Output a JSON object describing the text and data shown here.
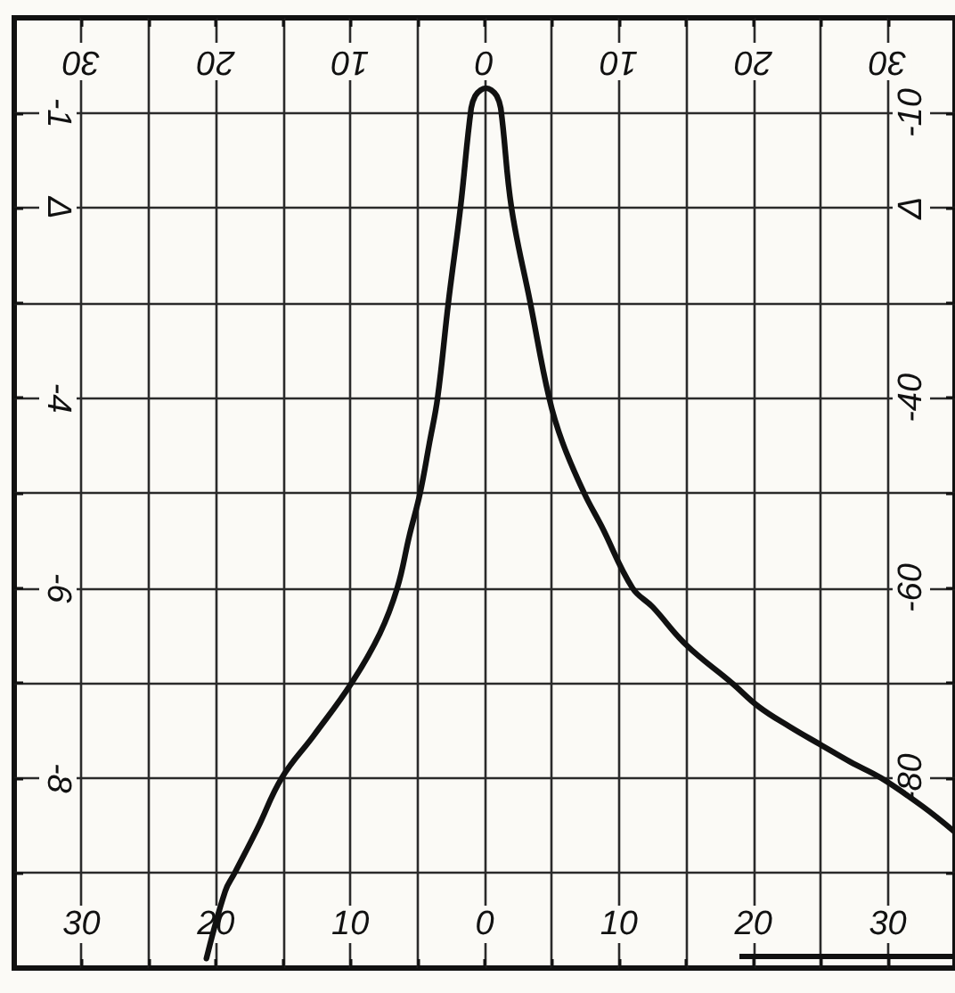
{
  "chart_data": {
    "type": "line",
    "x": [
      -20.7,
      -19.3,
      -18.6,
      -16.9,
      -15.1,
      -12.7,
      -9.9,
      -7.8,
      -6.5,
      -5.6,
      -4.8,
      -4.1,
      -3.5,
      -2.7,
      -1.8,
      -1.0,
      -0.7,
      -0.3,
      0.1,
      0.5,
      0.9,
      1.2,
      2.0,
      3.4,
      4.8,
      5.8,
      7.4,
      8.7,
      11.0,
      12.5,
      15,
      18.4,
      20.4,
      22.7,
      25,
      27.2,
      29.5,
      32.6,
      35
    ],
    "series": [
      {
        "color": "#111111",
        "axis": "y2",
        "values": [
          -99,
          -91.9,
          -90,
          -85.3,
          -80,
          -75.5,
          -70,
          -64.8,
          -60,
          -54.5,
          -50,
          -44.7,
          -40,
          -30,
          -20,
          -9.5,
          -8.2,
          -7.6,
          -7.4,
          -7.6,
          -8.2,
          -9.5,
          -20,
          -30,
          -40,
          -44.7,
          -50,
          -53.5,
          -60,
          -62.0,
          -66,
          -70,
          -72.5,
          -74.6,
          -76.5,
          -78.3,
          -80,
          -83,
          -85.7
        ]
      }
    ],
    "xlim": [
      -35,
      35
    ],
    "xticks": [
      {
        "value": -30,
        "label": "30"
      },
      {
        "value": -25,
        "label": null
      },
      {
        "value": -20,
        "label": "20"
      },
      {
        "value": -15,
        "label": null
      },
      {
        "value": -10,
        "label": "10"
      },
      {
        "value": -5,
        "label": null
      },
      0,
      {
        "value": 5,
        "label": null
      },
      10,
      {
        "value": 15,
        "label": null
      },
      20,
      {
        "value": 25,
        "label": null
      },
      30
    ],
    "x2lim": [
      -35,
      35
    ],
    "x2ticks": [
      {
        "value": -30,
        "label": "30"
      },
      {
        "value": -25,
        "label": null
      },
      {
        "value": -20,
        "label": "20"
      },
      {
        "value": -15,
        "label": null
      },
      {
        "value": -10,
        "label": "10"
      },
      {
        "value": -5,
        "label": null
      },
      0,
      {
        "value": 5,
        "label": null
      },
      10,
      {
        "value": 15,
        "label": null
      },
      20,
      {
        "value": 25,
        "label": null
      },
      30
    ],
    "ylim": [
      -10,
      0
    ],
    "yticks": [
      {
        "value": -9,
        "label": null
      },
      -8,
      {
        "value": -7,
        "label": null
      },
      -6,
      {
        "value": -5,
        "label": null
      },
      -4,
      {
        "value": -3,
        "label": null
      },
      {
        "value": -2,
        "label": "Δ"
      },
      -1
    ],
    "y2lim": [
      -100,
      0
    ],
    "y2ticks": [
      {
        "value": -90,
        "label": null
      },
      -80,
      {
        "value": -70,
        "label": null
      },
      -60,
      {
        "value": -50,
        "label": null
      },
      -40,
      {
        "value": -30,
        "label": null
      },
      {
        "value": -20,
        "label": "Δ"
      },
      -10
    ],
    "grid": true,
    "marker": "none",
    "line_style": "solid"
  }
}
